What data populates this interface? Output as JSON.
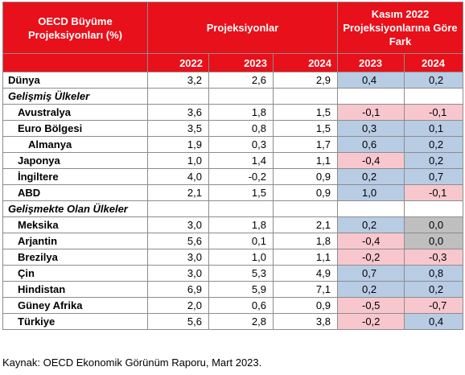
{
  "header": {
    "col_title": "OECD Büyüme Projeksiyonları (%)",
    "projections_title": "Projeksiyonlar",
    "diff_title": "Kasım 2022 Projeksiyonlarına Göre Fark",
    "years": [
      "2022",
      "2023",
      "2024"
    ],
    "diff_years": [
      "2023",
      "2024"
    ]
  },
  "chart_data": {
    "type": "table",
    "columns": [
      "OECD Büyüme Projeksiyonları (%)",
      "2022",
      "2023",
      "2024",
      "Fark 2023",
      "Fark 2024"
    ],
    "rows": [
      {
        "name": "Dünya",
        "indent": 0,
        "values": [
          "3,2",
          "2,6",
          "2,9"
        ],
        "diffs": [
          "0,4",
          "0,2"
        ]
      },
      {
        "name": "Gelişmiş Ülkeler",
        "group": true
      },
      {
        "name": "Avustralya",
        "indent": 1,
        "values": [
          "3,6",
          "1,8",
          "1,5"
        ],
        "diffs": [
          "-0,1",
          "-0,1"
        ]
      },
      {
        "name": "Euro Bölgesi",
        "indent": 1,
        "values": [
          "3,5",
          "0,8",
          "1,5"
        ],
        "diffs": [
          "0,3",
          "0,1"
        ]
      },
      {
        "name": "Almanya",
        "indent": 2,
        "values": [
          "1,9",
          "0,3",
          "1,7"
        ],
        "diffs": [
          "0,6",
          "0,2"
        ]
      },
      {
        "name": "Japonya",
        "indent": 1,
        "values": [
          "1,0",
          "1,4",
          "1,1"
        ],
        "diffs": [
          "-0,4",
          "0,2"
        ]
      },
      {
        "name": "İngiltere",
        "indent": 1,
        "values": [
          "4,0",
          "-0,2",
          "0,9"
        ],
        "diffs": [
          "0,2",
          "0,7"
        ]
      },
      {
        "name": "ABD",
        "indent": 1,
        "values": [
          "2,1",
          "1,5",
          "0,9"
        ],
        "diffs": [
          "1,0",
          "-0,1"
        ]
      },
      {
        "name": "Gelişmekte Olan Ülkeler",
        "group": true
      },
      {
        "name": "Meksika",
        "indent": 1,
        "values": [
          "3,0",
          "1,8",
          "2,1"
        ],
        "diffs": [
          "0,2",
          "0,0"
        ]
      },
      {
        "name": "Arjantin",
        "indent": 1,
        "values": [
          "5,6",
          "0,1",
          "1,8"
        ],
        "diffs": [
          "-0,4",
          "0,0"
        ]
      },
      {
        "name": "Brezilya",
        "indent": 1,
        "values": [
          "3,0",
          "1,0",
          "1,1"
        ],
        "diffs": [
          "-0,2",
          "-0,3"
        ]
      },
      {
        "name": "Çin",
        "indent": 1,
        "values": [
          "3,0",
          "5,3",
          "4,9"
        ],
        "diffs": [
          "0,7",
          "0,8"
        ]
      },
      {
        "name": "Hindistan",
        "indent": 1,
        "values": [
          "6,9",
          "5,9",
          "7,1"
        ],
        "diffs": [
          "0,2",
          "0,2"
        ]
      },
      {
        "name": "Güney Afrika",
        "indent": 1,
        "values": [
          "2,0",
          "0,6",
          "0,9"
        ],
        "diffs": [
          "-0,5",
          "-0,7"
        ]
      },
      {
        "name": "Türkiye",
        "indent": 1,
        "values": [
          "5,6",
          "2,8",
          "3,8"
        ],
        "diffs": [
          "-0,2",
          "0,4"
        ]
      }
    ]
  },
  "colors": {
    "header_bg": "#e8101a",
    "positive_bg": "#b8cce4",
    "negative_bg": "#f8c7cd",
    "zero_bg": "#bfbfbf"
  },
  "source": "Kaynak: OECD Ekonomik Görünüm Raporu, Mart 2023."
}
